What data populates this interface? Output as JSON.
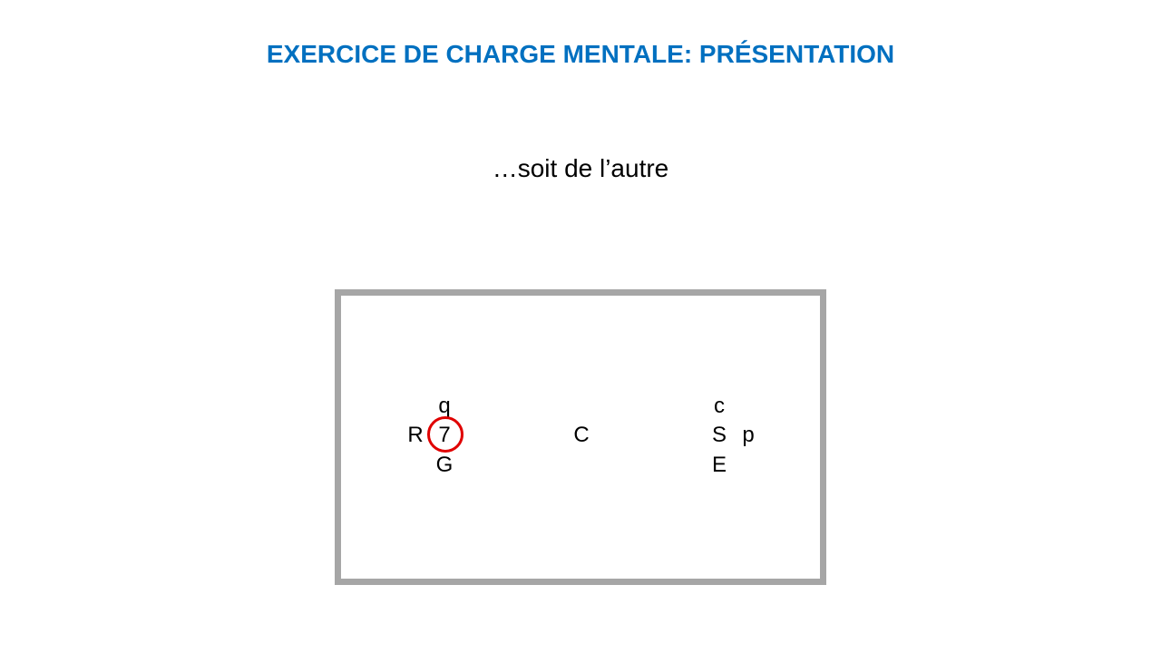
{
  "slide": {
    "title": "EXERCICE DE CHARGE MENTALE: PRÉSENTATION",
    "subtitle": "…soit de l’autre"
  },
  "stimulus": {
    "left_cluster": {
      "top": "q",
      "left": "R",
      "center": "7",
      "bottom": "G"
    },
    "middle": "C",
    "right_cluster": {
      "top": "c",
      "center": "S",
      "right": "p",
      "bottom": "E"
    },
    "highlight": {
      "target": "7",
      "color": "#e00000"
    }
  },
  "colors": {
    "title": "#0070c0",
    "frame_border": "#a6a6a6",
    "text": "#000000"
  }
}
